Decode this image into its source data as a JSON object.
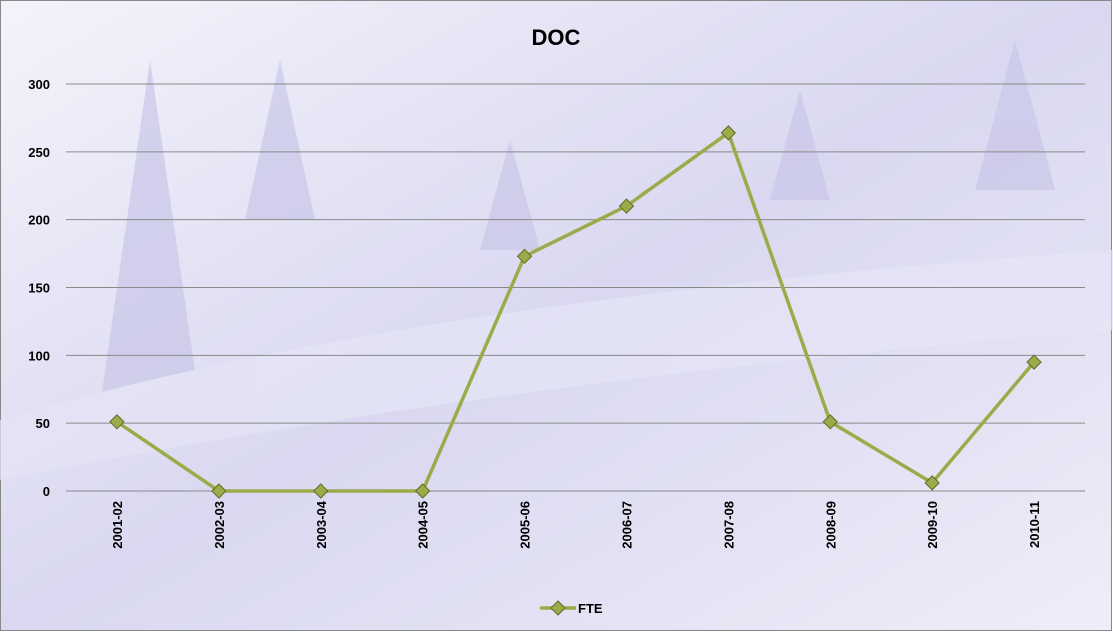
{
  "chart_data": {
    "type": "line",
    "title": "DOC",
    "categories": [
      "2001-02",
      "2002-03",
      "2003-04",
      "2004-05",
      "2005-06",
      "2006-07",
      "2007-08",
      "2008-09",
      "2009-10",
      "2010-11"
    ],
    "series": [
      {
        "name": "FTE",
        "color": "#9bab4a",
        "values": [
          51,
          0,
          0,
          0,
          173,
          210,
          264,
          51,
          6,
          95
        ]
      }
    ],
    "ylim": [
      0,
      300
    ],
    "yticks": [
      0,
      50,
      100,
      150,
      200,
      250,
      300
    ],
    "grid": true,
    "legend": "bottom"
  }
}
